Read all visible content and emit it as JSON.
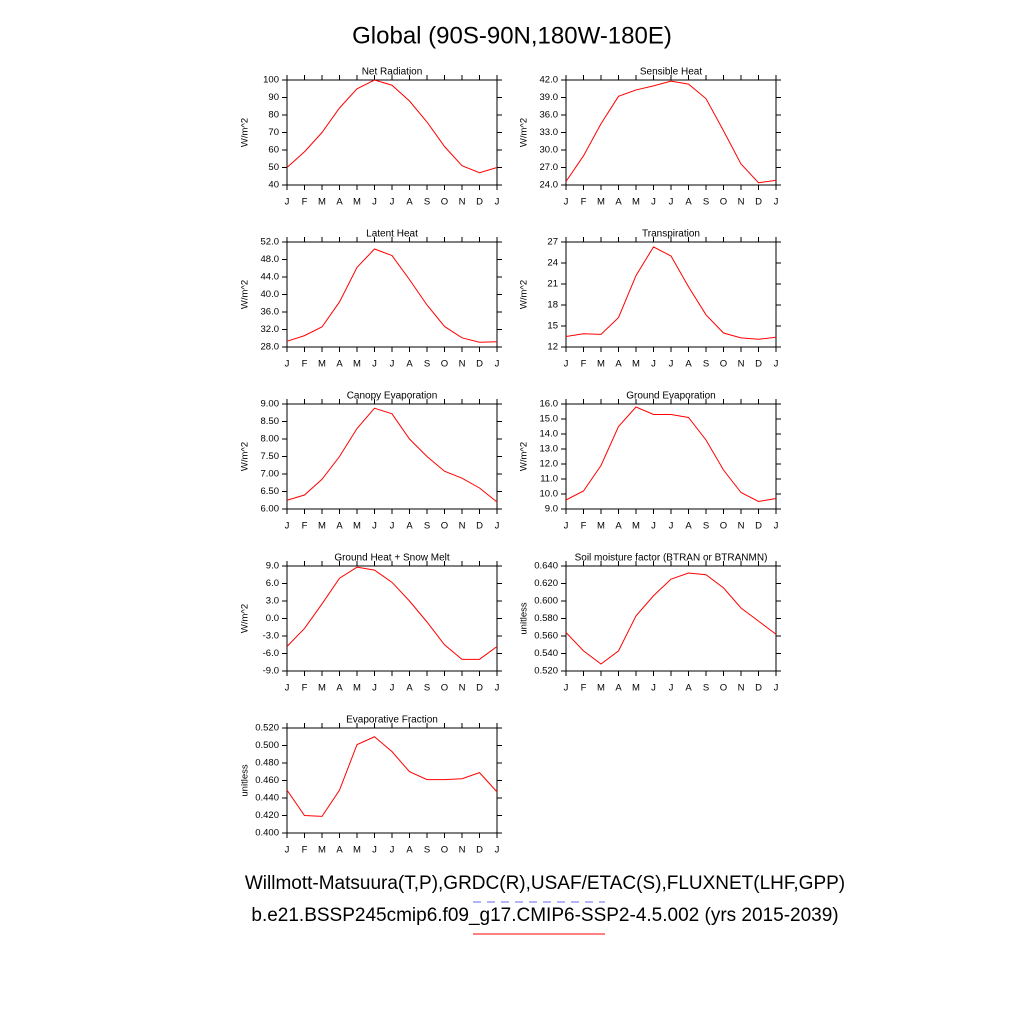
{
  "title": "Global (90S-90N,180W-180E)",
  "legend": [
    {
      "label": "Willmott-Matsuura(T,P),GRDC(R),USAF/ETAC(S),FLUXNET(LHF,GPP)",
      "color": "#6a6af0",
      "dash": true
    },
    {
      "label": "b.e21.BSSP245cmip6.f09_g17.CMIP6-SSP2-4.5.002 (yrs 2015-2039)",
      "color": "#ff0000",
      "dash": false
    }
  ],
  "chart_data": [
    {
      "type": "line",
      "title": "Net Radiation",
      "ylabel": "W/m^2",
      "color": "#ff0000",
      "categories": [
        "J",
        "F",
        "M",
        "A",
        "M",
        "J",
        "J",
        "A",
        "S",
        "O",
        "N",
        "D",
        "J"
      ],
      "values": [
        50,
        59,
        70,
        84,
        95,
        100,
        97,
        88,
        76,
        62,
        51,
        47,
        50
      ],
      "ylim": [
        40,
        100
      ],
      "yticks": [
        40,
        50,
        60,
        70,
        80,
        90,
        100
      ]
    },
    {
      "type": "line",
      "title": "Sensible Heat",
      "ylabel": "W/m^2",
      "color": "#ff0000",
      "categories": [
        "J",
        "F",
        "M",
        "A",
        "M",
        "J",
        "J",
        "A",
        "S",
        "O",
        "N",
        "D",
        "J"
      ],
      "values": [
        24.6,
        29,
        34.5,
        39.2,
        40.3,
        41,
        41.8,
        41.3,
        38.8,
        33.3,
        27.6,
        24.4,
        24.8
      ],
      "ylim": [
        24,
        42
      ],
      "yticks": [
        {
          "value": 24,
          "label": "24.0"
        },
        {
          "value": 27,
          "label": "27.0"
        },
        {
          "value": 30,
          "label": "30.0"
        },
        {
          "value": 33,
          "label": "33.0"
        },
        {
          "value": 36,
          "label": "36.0"
        },
        {
          "value": 39,
          "label": "39.0"
        },
        {
          "value": 42,
          "label": "42.0"
        }
      ]
    },
    {
      "type": "line",
      "title": "Latent Heat",
      "ylabel": "W/m^2",
      "color": "#ff0000",
      "categories": [
        "J",
        "F",
        "M",
        "A",
        "M",
        "J",
        "J",
        "A",
        "S",
        "O",
        "N",
        "D",
        "J"
      ],
      "values": [
        29.3,
        30.6,
        32.6,
        38.3,
        46.2,
        50.4,
        48.9,
        43.4,
        37.6,
        32.7,
        30.1,
        29.1,
        29.2
      ],
      "ylim": [
        28,
        52
      ],
      "yticks": [
        {
          "value": 28,
          "label": "28.0"
        },
        {
          "value": 32,
          "label": "32.0"
        },
        {
          "value": 36,
          "label": "36.0"
        },
        {
          "value": 40,
          "label": "40.0"
        },
        {
          "value": 44,
          "label": "44.0"
        },
        {
          "value": 48,
          "label": "48.0"
        },
        {
          "value": 52,
          "label": "52.0"
        }
      ]
    },
    {
      "type": "line",
      "title": "Transpiration",
      "ylabel": "W/m^2",
      "color": "#ff0000",
      "categories": [
        "J",
        "F",
        "M",
        "A",
        "M",
        "J",
        "J",
        "A",
        "S",
        "O",
        "N",
        "D",
        "J"
      ],
      "values": [
        13.5,
        13.9,
        13.8,
        16.2,
        22.2,
        26.3,
        25,
        20.6,
        16.6,
        14,
        13.3,
        13.1,
        13.4
      ],
      "ylim": [
        12,
        27
      ],
      "yticks": [
        12,
        15,
        18,
        21,
        24,
        27
      ]
    },
    {
      "type": "line",
      "title": "Canopy Evaporation",
      "ylabel": "W/m^2",
      "color": "#ff0000",
      "categories": [
        "J",
        "F",
        "M",
        "A",
        "M",
        "J",
        "J",
        "A",
        "S",
        "O",
        "N",
        "D",
        "J"
      ],
      "values": [
        6.25,
        6.4,
        6.85,
        7.5,
        8.3,
        8.88,
        8.72,
        8.0,
        7.5,
        7.08,
        6.88,
        6.6,
        6.2
      ],
      "ylim": [
        6,
        9
      ],
      "yticks": [
        {
          "value": 6,
          "label": "6.00"
        },
        {
          "value": 6.5,
          "label": "6.50"
        },
        {
          "value": 7,
          "label": "7.00"
        },
        {
          "value": 7.5,
          "label": "7.50"
        },
        {
          "value": 8,
          "label": "8.00"
        },
        {
          "value": 8.5,
          "label": "8.50"
        },
        {
          "value": 9,
          "label": "9.00"
        }
      ]
    },
    {
      "type": "line",
      "title": "Ground Evaporation",
      "ylabel": "W/m^2",
      "color": "#ff0000",
      "categories": [
        "J",
        "F",
        "M",
        "A",
        "M",
        "J",
        "J",
        "A",
        "S",
        "O",
        "N",
        "D",
        "J"
      ],
      "values": [
        9.6,
        10.2,
        11.9,
        14.5,
        15.8,
        15.3,
        15.3,
        15.1,
        13.6,
        11.6,
        10.1,
        9.5,
        9.7
      ],
      "ylim": [
        9,
        16
      ],
      "yticks": [
        {
          "value": 9,
          "label": "9.0"
        },
        {
          "value": 10,
          "label": "10.0"
        },
        {
          "value": 11,
          "label": "11.0"
        },
        {
          "value": 12,
          "label": "12.0"
        },
        {
          "value": 13,
          "label": "13.0"
        },
        {
          "value": 14,
          "label": "14.0"
        },
        {
          "value": 15,
          "label": "15.0"
        },
        {
          "value": 16,
          "label": "16.0"
        }
      ]
    },
    {
      "type": "line",
      "title": "Ground Heat + Snow Melt",
      "ylabel": "W/m^2",
      "color": "#ff0000",
      "categories": [
        "J",
        "F",
        "M",
        "A",
        "M",
        "J",
        "J",
        "A",
        "S",
        "O",
        "N",
        "D",
        "J"
      ],
      "values": [
        -4.8,
        -1.7,
        2.5,
        6.9,
        8.8,
        8.3,
        6.2,
        3.0,
        -0.6,
        -4.5,
        -7.0,
        -7.0,
        -4.8
      ],
      "ylim": [
        -9,
        9
      ],
      "yticks": [
        {
          "value": -9,
          "label": "-9.0"
        },
        {
          "value": -6,
          "label": "-6.0"
        },
        {
          "value": -3,
          "label": "-3.0"
        },
        {
          "value": 0,
          "label": "0.0"
        },
        {
          "value": 3,
          "label": "3.0"
        },
        {
          "value": 6,
          "label": "6.0"
        },
        {
          "value": 9,
          "label": "9.0"
        }
      ]
    },
    {
      "type": "line",
      "title": "Soil moisture factor (BTRAN or BTRANMN)",
      "ylabel": "unitless",
      "color": "#ff0000",
      "categories": [
        "J",
        "F",
        "M",
        "A",
        "M",
        "J",
        "J",
        "A",
        "S",
        "O",
        "N",
        "D",
        "J"
      ],
      "values": [
        0.564,
        0.543,
        0.528,
        0.543,
        0.583,
        0.606,
        0.625,
        0.632,
        0.63,
        0.615,
        0.592,
        0.577,
        0.562
      ],
      "ylim": [
        0.52,
        0.64
      ],
      "yticks": [
        {
          "value": 0.52,
          "label": "0.520"
        },
        {
          "value": 0.54,
          "label": "0.540"
        },
        {
          "value": 0.56,
          "label": "0.560"
        },
        {
          "value": 0.58,
          "label": "0.580"
        },
        {
          "value": 0.6,
          "label": "0.600"
        },
        {
          "value": 0.62,
          "label": "0.620"
        },
        {
          "value": 0.64,
          "label": "0.640"
        }
      ]
    },
    {
      "type": "line",
      "title": "Evaporative Fraction",
      "ylabel": "unitless",
      "color": "#ff0000",
      "categories": [
        "J",
        "F",
        "M",
        "A",
        "M",
        "J",
        "J",
        "A",
        "S",
        "O",
        "N",
        "D",
        "J"
      ],
      "values": [
        0.449,
        0.42,
        0.419,
        0.449,
        0.501,
        0.51,
        0.493,
        0.47,
        0.461,
        0.461,
        0.462,
        0.469,
        0.447
      ],
      "ylim": [
        0.4,
        0.52
      ],
      "yticks": [
        {
          "value": 0.4,
          "label": "0.400"
        },
        {
          "value": 0.42,
          "label": "0.420"
        },
        {
          "value": 0.44,
          "label": "0.440"
        },
        {
          "value": 0.46,
          "label": "0.460"
        },
        {
          "value": 0.48,
          "label": "0.480"
        },
        {
          "value": 0.5,
          "label": "0.500"
        },
        {
          "value": 0.52,
          "label": "0.520"
        }
      ]
    }
  ]
}
